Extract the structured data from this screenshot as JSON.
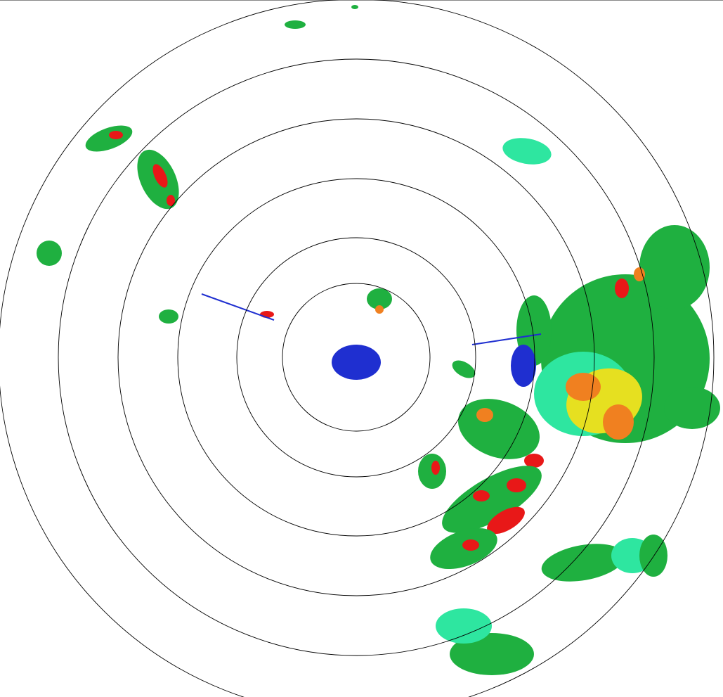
{
  "radar": {
    "range_ring_count": 6,
    "palette": {
      "weak": "#1f2fd0",
      "light": "#2ee6a0",
      "moderate": "#1fb040",
      "strong": "#e6e020",
      "heavy": "#f08020",
      "intense": "#e81818"
    },
    "ring_color": "#000000",
    "background": "#ffffff"
  }
}
